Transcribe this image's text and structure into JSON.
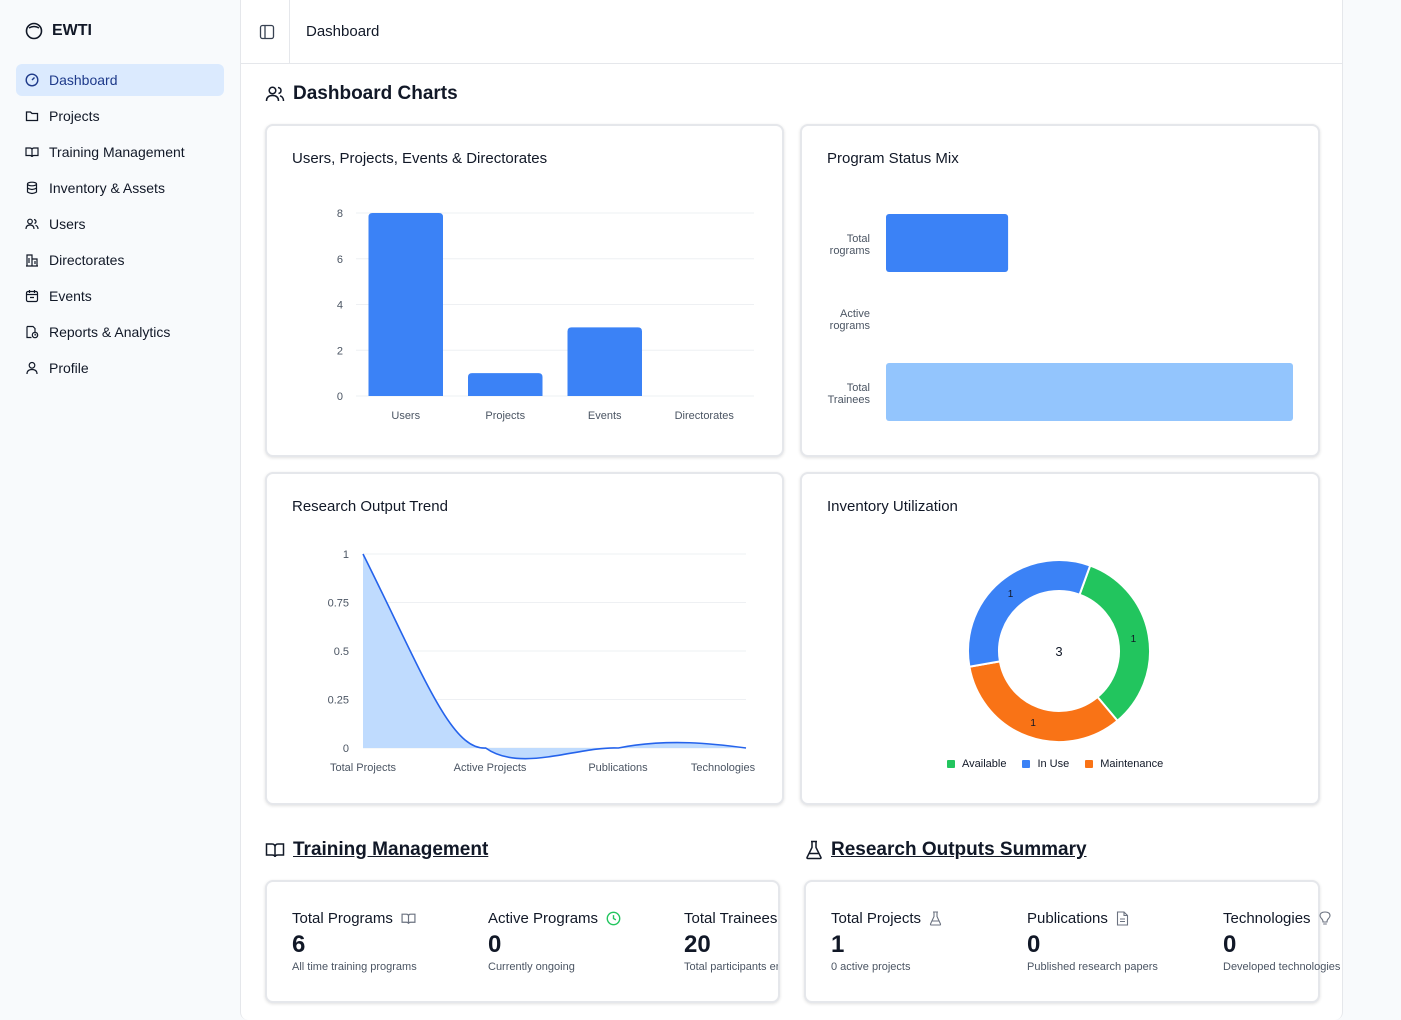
{
  "brand": {
    "name": "EWTI"
  },
  "sidebar": {
    "items": [
      {
        "label": "Dashboard",
        "icon": "dashboard-icon"
      },
      {
        "label": "Projects",
        "icon": "folder-icon"
      },
      {
        "label": "Training Management",
        "icon": "book-icon"
      },
      {
        "label": "Inventory & Assets",
        "icon": "database-icon"
      },
      {
        "label": "Users",
        "icon": "users-icon"
      },
      {
        "label": "Directorates",
        "icon": "building-icon"
      },
      {
        "label": "Events",
        "icon": "calendar-icon"
      },
      {
        "label": "Reports & Analytics",
        "icon": "report-icon"
      },
      {
        "label": "Profile",
        "icon": "user-icon"
      }
    ]
  },
  "header": {
    "breadcrumb": "Dashboard"
  },
  "charts_section": {
    "title": "Dashboard Charts"
  },
  "colors": {
    "blue": "#3b82f6",
    "light_blue": "#93c5fd",
    "green": "#22c55e",
    "orange": "#f97316",
    "active_nav_bg": "#dbeafe"
  },
  "chart_data": [
    {
      "type": "bar",
      "title": "Users, Projects, Events & Directorates",
      "categories": [
        "Users",
        "Projects",
        "Events",
        "Directorates"
      ],
      "values": [
        8,
        1,
        3,
        0
      ],
      "ylim": [
        0,
        8
      ],
      "yticks": [
        0,
        2,
        4,
        6,
        8
      ],
      "grid": true
    },
    {
      "type": "bar",
      "orientation": "horizontal",
      "title": "Program Status Mix",
      "categories": [
        "Total Programs",
        "Active Programs",
        "Total Trainees"
      ],
      "category_lines": [
        [
          "Total",
          "rograms"
        ],
        [
          "Active",
          "rograms"
        ],
        [
          "Total",
          "Trainees"
        ]
      ],
      "values": [
        6,
        0,
        20
      ],
      "colors": [
        "#3b82f6",
        "#3b82f6",
        "#93c5fd"
      ],
      "xlim": [
        0,
        20
      ]
    },
    {
      "type": "area",
      "title": "Research Output Trend",
      "categories": [
        "Total Projects",
        "Active Projects",
        "Publications",
        "Technologies"
      ],
      "values": [
        1,
        0,
        0,
        0
      ],
      "ylim": [
        0,
        1
      ],
      "yticks": [
        0,
        0.25,
        0.5,
        0.75,
        1
      ],
      "ytick_labels": [
        "0",
        "0.25",
        "0.5",
        "0.75",
        "1"
      ],
      "grid": true
    },
    {
      "type": "pie",
      "title": "Inventory Utilization",
      "center_label": "3",
      "slices": [
        {
          "label": "Available",
          "value": 1,
          "color": "#22c55e"
        },
        {
          "label": "Maintenance",
          "value": 1,
          "color": "#f97316"
        },
        {
          "label": "In Use",
          "value": 1,
          "color": "#3b82f6"
        }
      ],
      "legend": [
        "Available",
        "In Use",
        "Maintenance"
      ],
      "legend_placement": "bottom"
    }
  ],
  "training": {
    "title": "Training Management",
    "stats": [
      {
        "label": "Total Programs",
        "value": "6",
        "sub": "All time training programs",
        "icon": "book-icon"
      },
      {
        "label": "Active Programs",
        "value": "0",
        "sub": "Currently ongoing",
        "icon": "clock-icon"
      },
      {
        "label": "Total Trainees",
        "value": "20",
        "sub": "Total participants enro",
        "icon": "users-icon"
      }
    ]
  },
  "research": {
    "title": "Research Outputs Summary",
    "stats": [
      {
        "label": "Total Projects",
        "value": "1",
        "sub": "0 active projects",
        "icon": "flask-icon"
      },
      {
        "label": "Publications",
        "value": "0",
        "sub": "Published research papers",
        "icon": "document-icon"
      },
      {
        "label": "Technologies",
        "value": "0",
        "sub": "Developed technologies",
        "icon": "lightbulb-icon"
      }
    ]
  }
}
